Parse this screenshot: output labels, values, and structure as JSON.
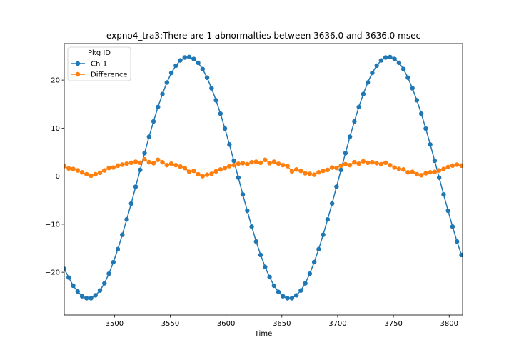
{
  "chart_data": {
    "type": "line",
    "title": "expno4_tra3:There are 1 abnormalties between 3636.0 and 3636.0 msec",
    "xlabel": "Time",
    "ylabel": "",
    "xlim": [
      3455,
      3812
    ],
    "ylim": [
      -28.9,
      27.6
    ],
    "xticks": [
      3500,
      3550,
      3600,
      3650,
      3700,
      3750,
      3800
    ],
    "xtick_labels": [
      "3500",
      "3550",
      "3600",
      "3650",
      "3700",
      "3750",
      "3800"
    ],
    "yticks": [
      -20,
      -10,
      0,
      10,
      20
    ],
    "ytick_labels": [
      "−20",
      "−10",
      "0",
      "10",
      "20"
    ],
    "grid": false,
    "legend": {
      "title": "Pkg ID",
      "placement": "top-left",
      "entries": [
        "Ch-1",
        "Difference"
      ]
    },
    "series": [
      {
        "name": "Ch-1",
        "color": "#1f77b4",
        "marker": "circle",
        "x": [
          3455,
          3459,
          3463,
          3467,
          3471,
          3475,
          3479,
          3483,
          3487,
          3491,
          3495,
          3499,
          3503,
          3507,
          3511,
          3515,
          3519,
          3523,
          3527,
          3531,
          3535,
          3539,
          3543,
          3547,
          3551,
          3555,
          3559,
          3563,
          3567,
          3571,
          3575,
          3579,
          3583,
          3587,
          3591,
          3595,
          3599,
          3603,
          3607,
          3611,
          3615,
          3619,
          3623,
          3627,
          3631,
          3635,
          3639,
          3643,
          3647,
          3651,
          3655,
          3659,
          3663,
          3667,
          3671,
          3675,
          3679,
          3683,
          3687,
          3691,
          3695,
          3699,
          3703,
          3707,
          3711,
          3715,
          3719,
          3723,
          3727,
          3731,
          3735,
          3739,
          3743,
          3747,
          3751,
          3755,
          3759,
          3763,
          3767,
          3771,
          3775,
          3779,
          3783,
          3787,
          3791,
          3795,
          3799,
          3803,
          3807,
          3811
        ],
        "values": [
          -19.3,
          -21.1,
          -22.8,
          -24.0,
          -25.0,
          -25.4,
          -25.4,
          -24.8,
          -23.8,
          -22.3,
          -20.3,
          -17.9,
          -15.2,
          -12.2,
          -9.0,
          -5.7,
          -2.2,
          1.3,
          4.8,
          8.2,
          11.4,
          14.4,
          17.1,
          19.5,
          21.5,
          23.0,
          24.1,
          24.7,
          24.8,
          24.4,
          23.6,
          22.3,
          20.5,
          18.3,
          15.8,
          13.0,
          9.9,
          6.6,
          3.2,
          -0.3,
          -3.8,
          -7.2,
          -10.5,
          -13.6,
          -16.4,
          -18.9,
          -21.0,
          -22.8,
          -24.1,
          -25.0,
          -25.4,
          -25.4,
          -24.8,
          -23.8,
          -22.3,
          -20.3,
          -17.9,
          -15.2,
          -12.2,
          -9.0,
          -5.7,
          -2.2,
          1.3,
          4.8,
          8.2,
          11.4,
          14.4,
          17.1,
          19.5,
          21.5,
          23.0,
          24.1,
          24.7,
          24.8,
          24.4,
          23.6,
          22.3,
          20.5,
          18.3,
          15.8,
          13.0,
          9.9,
          6.6,
          3.2,
          -0.3,
          -3.8,
          -7.2,
          -10.5,
          -13.6,
          -16.4
        ]
      },
      {
        "name": "Difference",
        "color": "#ff7f0e",
        "marker": "circle",
        "x": [
          3455,
          3459,
          3463,
          3467,
          3471,
          3475,
          3479,
          3483,
          3487,
          3491,
          3495,
          3499,
          3503,
          3507,
          3511,
          3515,
          3519,
          3523,
          3527,
          3531,
          3535,
          3539,
          3543,
          3547,
          3551,
          3555,
          3559,
          3563,
          3567,
          3571,
          3575,
          3579,
          3583,
          3587,
          3591,
          3595,
          3599,
          3603,
          3607,
          3611,
          3615,
          3619,
          3623,
          3627,
          3631,
          3635,
          3639,
          3643,
          3647,
          3651,
          3655,
          3659,
          3663,
          3667,
          3671,
          3675,
          3679,
          3683,
          3687,
          3691,
          3695,
          3699,
          3703,
          3707,
          3711,
          3715,
          3719,
          3723,
          3727,
          3731,
          3735,
          3739,
          3743,
          3747,
          3751,
          3755,
          3759,
          3763,
          3767,
          3771,
          3775,
          3779,
          3783,
          3787,
          3791,
          3795,
          3799,
          3803,
          3807,
          3811
        ],
        "values": [
          2.1,
          1.6,
          1.5,
          1.2,
          0.8,
          0.4,
          0.1,
          0.4,
          0.7,
          1.2,
          1.7,
          1.8,
          2.2,
          2.4,
          2.6,
          2.8,
          3.0,
          2.8,
          3.5,
          2.9,
          2.7,
          3.4,
          2.9,
          2.3,
          2.6,
          2.3,
          2.0,
          1.7,
          0.9,
          1.1,
          0.4,
          0.0,
          0.3,
          0.5,
          1.0,
          1.4,
          1.7,
          2.1,
          2.3,
          2.6,
          2.7,
          2.5,
          2.9,
          3.0,
          2.8,
          3.4,
          2.7,
          3.0,
          2.6,
          2.3,
          2.1,
          1.0,
          1.4,
          1.1,
          0.6,
          0.5,
          0.3,
          0.8,
          1.1,
          1.3,
          1.8,
          1.7,
          2.2,
          2.5,
          2.3,
          2.9,
          2.6,
          3.1,
          2.8,
          2.9,
          2.7,
          2.5,
          2.8,
          2.3,
          1.8,
          1.5,
          1.4,
          0.8,
          0.9,
          0.4,
          0.2,
          0.6,
          0.8,
          0.9,
          1.2,
          1.5,
          1.9,
          2.2,
          2.4,
          2.2
        ]
      }
    ]
  }
}
